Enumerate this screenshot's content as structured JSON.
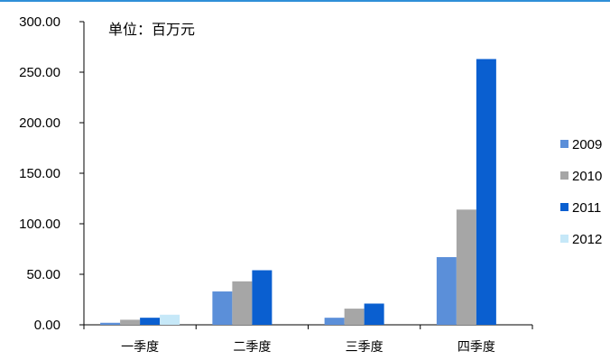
{
  "chart_data": {
    "type": "bar",
    "unit_note": "单位：百万元",
    "categories": [
      "一季度",
      "二季度",
      "三季度",
      "四季度"
    ],
    "series": [
      {
        "name": "2009",
        "color": "#5b8fd9",
        "values": [
          2.0,
          33.0,
          7.0,
          67.0
        ]
      },
      {
        "name": "2010",
        "color": "#a6a6a6",
        "values": [
          5.0,
          43.0,
          16.0,
          114.0
        ]
      },
      {
        "name": "2011",
        "color": "#0a5fd0",
        "values": [
          7.0,
          54.0,
          21.0,
          263.0
        ]
      },
      {
        "name": "2012",
        "color": "#c6e8f8",
        "values": [
          10.0,
          null,
          null,
          null
        ]
      }
    ],
    "ylim": [
      0,
      300
    ],
    "yticks": [
      "0.00",
      "50.00",
      "100.00",
      "150.00",
      "200.00",
      "250.00",
      "300.00"
    ],
    "xlabel": "",
    "ylabel": "",
    "grid": false,
    "legend_position": "right"
  }
}
